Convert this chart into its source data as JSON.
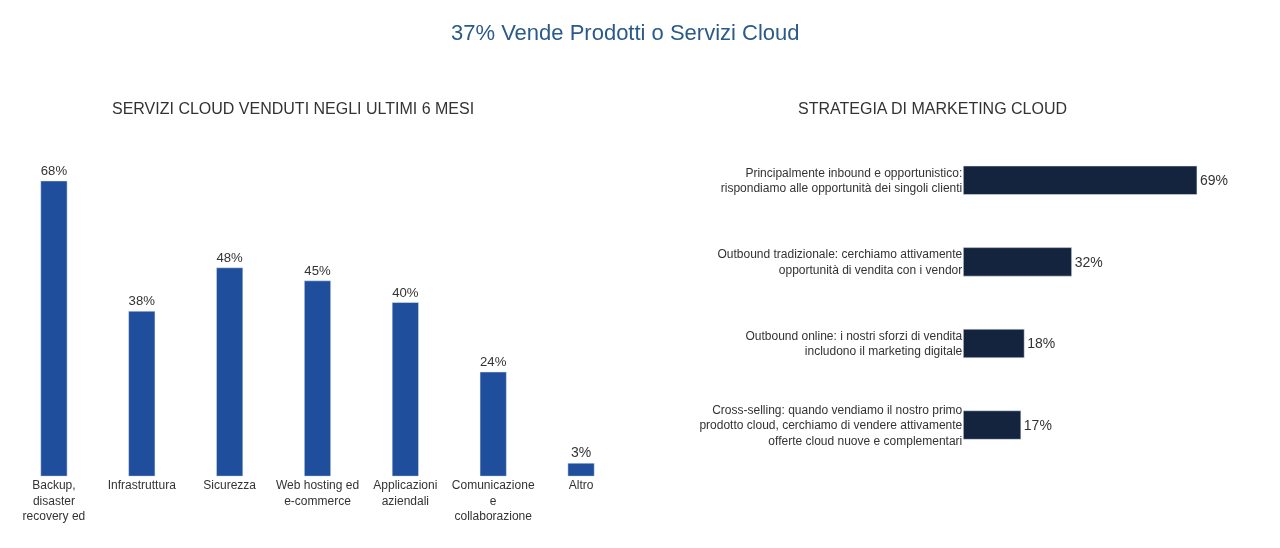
{
  "chart_data": [
    {
      "type": "bar",
      "title": "SERVIZI CLOUD VENDUTI NEGLI ULTIMI 6 MESI",
      "annotations": [
        "37% Vende Prodotti o Servizi Cloud"
      ],
      "categories": [
        "Backup, disaster recovery ed",
        "Infrastruttura",
        "Sicurezza",
        "Web hosting ed e-commerce",
        "Applicazioni aziendali",
        "Comunicazione e collaborazione",
        "Altro"
      ],
      "values": [
        68,
        38,
        48,
        45,
        40,
        24,
        3
      ],
      "color": "#1f4e9c",
      "value_labels": [
        "68%",
        "38%",
        "48%",
        "45%",
        "40%",
        "24%",
        "3%"
      ],
      "legend": false
    },
    {
      "type": "bar",
      "orientation": "horizontal",
      "title": "STRATEGIA DI MARKETING CLOUD",
      "categories": [
        "Principalmente inbound e opportunistico: rispondiamo alle opportunità dei singoli clienti",
        "Outbound tradizionale: cerchiamo attivamente opportunità di vendita con i vendor",
        "Outbound online: i nostri sforzi di vendita includono il marketing digitale",
        "Cross-selling: quando vendiamo il nostro primo prodotto cloud, cerchiamo di vendere attivamente offerte cloud nuove e complementari"
      ],
      "values": [
        69,
        32,
        18,
        17
      ],
      "color": "#14243f",
      "value_labels": [
        "69%",
        "32%",
        "18%",
        "17%"
      ],
      "legend": false
    }
  ]
}
